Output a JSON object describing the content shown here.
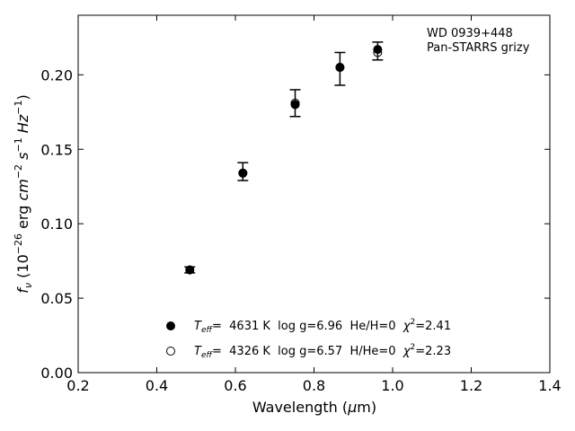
{
  "chart_data": {
    "type": "scatter",
    "title": "",
    "xlabel": "Wavelength (μm)",
    "ylabel": "f_ν (10^-26 erg cm^-2 s^-1 Hz^-1)",
    "xlim": [
      0.2,
      1.4
    ],
    "ylim": [
      0.0,
      0.24
    ],
    "xticks": [
      0.2,
      0.4,
      0.6,
      0.8,
      1.0,
      1.2,
      1.4
    ],
    "xtick_labels": [
      "0.2",
      "0.4",
      "0.6",
      "0.8",
      "1.0",
      "1.2",
      "1.4"
    ],
    "yticks": [
      0.0,
      0.05,
      0.1,
      0.15,
      0.2
    ],
    "ytick_labels": [
      "0.00",
      "0.05",
      "0.10",
      "0.15",
      "0.20"
    ],
    "grid": false,
    "annotation": {
      "line1": "WD 0939+448",
      "line2": "Pan-STARRS grizy",
      "placement": "top-right"
    },
    "observed": {
      "x": [
        0.484,
        0.619,
        0.752,
        0.866,
        0.962
      ],
      "y": [
        0.069,
        0.135,
        0.181,
        0.204,
        0.216
      ],
      "yerr": [
        0.002,
        0.006,
        0.009,
        0.011,
        0.006
      ]
    },
    "series": [
      {
        "name": "T_eff= 4631 K log g=6.96 He/H=0 χ²=2.41",
        "marker": "filled-circle",
        "x": [
          0.484,
          0.619,
          0.752,
          0.866,
          0.962
        ],
        "y": [
          0.069,
          0.134,
          0.18,
          0.205,
          0.217
        ]
      },
      {
        "name": "T_eff= 4326 K log g=6.57 H/He=0 χ²=2.23",
        "marker": "open-circle",
        "x": [
          0.484,
          0.619,
          0.752,
          0.866,
          0.962
        ],
        "y": [
          0.069,
          0.134,
          0.181,
          0.205,
          0.215
        ]
      }
    ],
    "legend": {
      "placement": "bottom-center",
      "entries": [
        {
          "teff_label": "T",
          "teff_sub": "eff",
          "text": "=  4631 K  log g=6.96  He/H=0  ",
          "chi_label": "χ",
          "chi_sup": "2",
          "chi_value": "=2.41"
        },
        {
          "teff_label": "T",
          "teff_sub": "eff",
          "text": "=  4326 K  log g=6.57  H/He=0  ",
          "chi_label": "χ",
          "chi_sup": "2",
          "chi_value": "=2.23"
        }
      ]
    },
    "colors": {
      "marker": "#000000",
      "axes": "#000000",
      "background": "#ffffff"
    }
  }
}
